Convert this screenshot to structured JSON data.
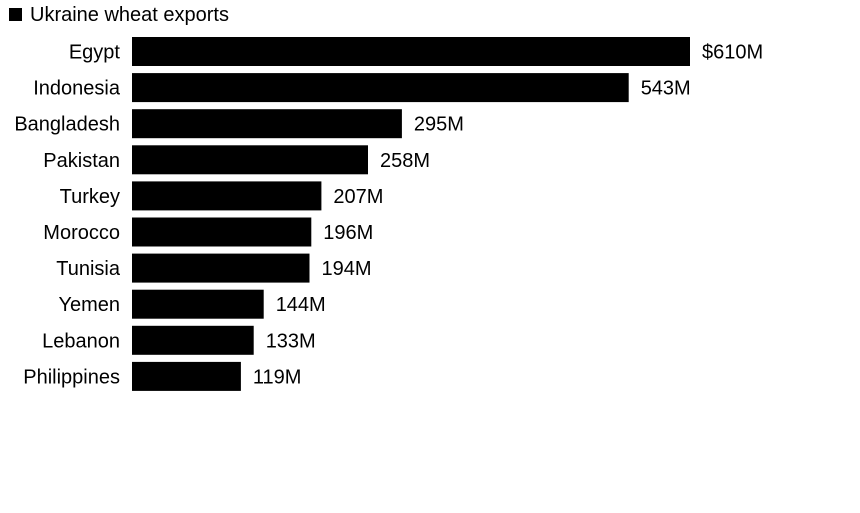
{
  "chart_data": {
    "type": "bar",
    "orientation": "horizontal",
    "title": "",
    "xlabel": "",
    "ylabel": "",
    "legend": {
      "entries": [
        "Ukraine wheat exports"
      ],
      "placement": "top-left"
    },
    "categories": [
      "Egypt",
      "Indonesia",
      "Bangladesh",
      "Pakistan",
      "Turkey",
      "Morocco",
      "Tunisia",
      "Yemen",
      "Lebanon",
      "Philippines"
    ],
    "series": [
      {
        "name": "Ukraine wheat exports",
        "values": [
          610,
          543,
          295,
          258,
          207,
          196,
          194,
          144,
          133,
          119
        ],
        "color": "#000000"
      }
    ],
    "data_labels": [
      "$610M",
      "543M",
      "295M",
      "258M",
      "207M",
      "196M",
      "194M",
      "144M",
      "133M",
      "119M"
    ],
    "unit": "USD millions",
    "xlim": [
      0,
      610
    ],
    "grid": false
  }
}
